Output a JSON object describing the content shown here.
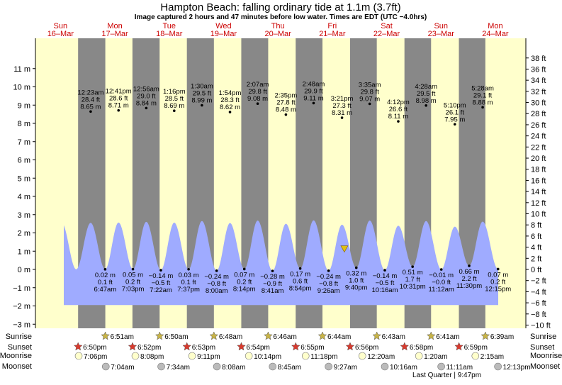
{
  "chart_data": {
    "type": "area",
    "title": "Hampton Beach: falling  ordinary tide at 1.1m (3.7ft)",
    "subtitle": "Image captured 2 hours and 47 minutes before low water. Times are EDT (UTC −4.0hrs)",
    "current_level_m": 1.1,
    "y_left": {
      "unit": "m",
      "ticks": [
        -3,
        -2,
        -1,
        0,
        1,
        2,
        3,
        4,
        5,
        6,
        7,
        8,
        9,
        10,
        11
      ],
      "labels": [
        "−3 m",
        "−2 m",
        "−1 m",
        "0 m",
        "1 m",
        "2 m",
        "3 m",
        "4 m",
        "5 m",
        "6 m",
        "7 m",
        "8 m",
        "9 m",
        "10 m",
        "11 m"
      ]
    },
    "y_right": {
      "unit": "ft",
      "ticks": [
        -10,
        -8,
        -6,
        -4,
        -2,
        0,
        2,
        4,
        6,
        8,
        10,
        12,
        14,
        16,
        18,
        20,
        22,
        24,
        26,
        28,
        30,
        32,
        34,
        36,
        38
      ],
      "labels": [
        "−10 ft",
        "−8 ft",
        "−6 ft",
        "−4 ft",
        "−2 ft",
        "0 ft",
        "2 ft",
        "4 ft",
        "6 ft",
        "8 ft",
        "10 ft",
        "12 ft",
        "14 ft",
        "16 ft",
        "18 ft",
        "20 ft",
        "22 ft",
        "24 ft",
        "26 ft",
        "28 ft",
        "30 ft",
        "32 ft",
        "34 ft",
        "36 ft",
        "38 ft"
      ]
    },
    "ylim_m": [
      -3,
      11.8
    ],
    "days": [
      {
        "dow": "Sun",
        "date": "16–Mar"
      },
      {
        "dow": "Mon",
        "date": "17–Mar"
      },
      {
        "dow": "Tue",
        "date": "18–Mar"
      },
      {
        "dow": "Wed",
        "date": "19–Mar"
      },
      {
        "dow": "Thu",
        "date": "20–Mar"
      },
      {
        "dow": "Fri",
        "date": "21–Mar"
      },
      {
        "dow": "Sat",
        "date": "22–Mar"
      },
      {
        "dow": "Sun",
        "date": "23–Mar"
      },
      {
        "dow": "Mon",
        "date": "24–Mar"
      }
    ],
    "high_tides": [
      {
        "day": 1,
        "hour": 0.383,
        "time": "12:23 am",
        "ft": "28.4 ft",
        "m": 8.65
      },
      {
        "day": 1,
        "hour": 12.683,
        "time": "12:41 pm",
        "ft": "28.6 ft",
        "m": 8.71
      },
      {
        "day": 2,
        "hour": 0.933,
        "time": "12:56 am",
        "ft": "29.0 ft",
        "m": 8.84
      },
      {
        "day": 2,
        "hour": 13.267,
        "time": "1:16 pm",
        "ft": "28.5 ft",
        "m": 8.69
      },
      {
        "day": 3,
        "hour": 1.5,
        "time": "1:30 am",
        "ft": "29.5 ft",
        "m": 8.99
      },
      {
        "day": 3,
        "hour": 13.9,
        "time": "1:54 pm",
        "ft": "28.3 ft",
        "m": 8.62
      },
      {
        "day": 4,
        "hour": 2.117,
        "time": "2:07 am",
        "ft": "29.8 ft",
        "m": 9.08
      },
      {
        "day": 4,
        "hour": 14.583,
        "time": "2:35 pm",
        "ft": "27.8 ft",
        "m": 8.48
      },
      {
        "day": 5,
        "hour": 2.8,
        "time": "2:48 am",
        "ft": "29.9 ft",
        "m": 9.11
      },
      {
        "day": 5,
        "hour": 15.35,
        "time": "3:21 pm",
        "ft": "27.3 ft",
        "m": 8.31
      },
      {
        "day": 6,
        "hour": 3.583,
        "time": "3:35 am",
        "ft": "29.8 ft",
        "m": 9.07
      },
      {
        "day": 6,
        "hour": 16.2,
        "time": "4:12 pm",
        "ft": "26.6 ft",
        "m": 8.11
      },
      {
        "day": 7,
        "hour": 4.467,
        "time": "4:28 am",
        "ft": "29.5 ft",
        "m": 8.98
      },
      {
        "day": 7,
        "hour": 17.167,
        "time": "5:10 pm",
        "ft": "26.1 ft",
        "m": 7.95
      },
      {
        "day": 8,
        "hour": 5.467,
        "time": "5:28 am",
        "ft": "29.1 ft",
        "m": 8.88
      }
    ],
    "low_tides": [
      {
        "day": 1,
        "hour": 6.783,
        "time": "6:47 am",
        "ft": "0.1 ft",
        "m": "0.02 m",
        "v": 0.02
      },
      {
        "day": 1,
        "hour": 19.05,
        "time": "7:03 pm",
        "ft": "0.2 ft",
        "m": "0.05 m",
        "v": 0.05
      },
      {
        "day": 2,
        "hour": 7.367,
        "time": "7:22 am",
        "ft": "−0.5 ft",
        "m": "−0.14 m",
        "v": -0.14
      },
      {
        "day": 2,
        "hour": 19.617,
        "time": "7:37 pm",
        "ft": "0.1 ft",
        "m": "0.03 m",
        "v": 0.03
      },
      {
        "day": 3,
        "hour": 8.0,
        "time": "8:00 am",
        "ft": "−0.8 ft",
        "m": "−0.24 m",
        "v": -0.24
      },
      {
        "day": 3,
        "hour": 20.233,
        "time": "8:14 pm",
        "ft": "0.2 ft",
        "m": "0.07 m",
        "v": 0.07
      },
      {
        "day": 4,
        "hour": 8.683,
        "time": "8:41 am",
        "ft": "−0.9 ft",
        "m": "−0.28 m",
        "v": -0.28
      },
      {
        "day": 4,
        "hour": 20.9,
        "time": "8:54 pm",
        "ft": "0.6 ft",
        "m": "0.17 m",
        "v": 0.17
      },
      {
        "day": 5,
        "hour": 9.433,
        "time": "9:26 am",
        "ft": "−0.8 ft",
        "m": "−0.24 m",
        "v": -0.24
      },
      {
        "day": 5,
        "hour": 21.667,
        "time": "9:40 pm",
        "ft": "1.0 ft",
        "m": "0.32 m",
        "v": 0.32
      },
      {
        "day": 6,
        "hour": 10.267,
        "time": "10:16 am",
        "ft": "−0.5 ft",
        "m": "−0.14 m",
        "v": -0.14
      },
      {
        "day": 6,
        "hour": 22.517,
        "time": "10:31 pm",
        "ft": "1.7 ft",
        "m": "0.51 m",
        "v": 0.51
      },
      {
        "day": 7,
        "hour": 11.2,
        "time": "11:12 am",
        "ft": "−0.0 ft",
        "m": "−0.01 m",
        "v": -0.01
      },
      {
        "day": 7,
        "hour": 23.5,
        "time": "11:30 pm",
        "ft": "2.2 ft",
        "m": "0.66 m",
        "v": 0.66
      },
      {
        "day": 8,
        "hour": 12.25,
        "time": "12:15 pm",
        "ft": "0.2 ft",
        "m": "0.07 m",
        "v": 0.07
      }
    ],
    "night_shading": [
      {
        "from_day": 0,
        "from_hour": 18.833,
        "to_day": 1,
        "to_hour": 6.85
      },
      {
        "from_day": 1,
        "from_hour": 18.833,
        "to_day": 2,
        "to_hour": 6.833
      },
      {
        "from_day": 2,
        "from_hour": 18.867,
        "to_day": 3,
        "to_hour": 6.8
      },
      {
        "from_day": 3,
        "from_hour": 18.883,
        "to_day": 4,
        "to_hour": 6.767
      },
      {
        "from_day": 4,
        "from_hour": 18.9,
        "to_day": 5,
        "to_hour": 6.733
      },
      {
        "from_day": 5,
        "from_hour": 18.917,
        "to_day": 6,
        "to_hour": 6.717
      },
      {
        "from_day": 6,
        "from_hour": 18.933,
        "to_day": 7,
        "to_hour": 6.683
      },
      {
        "from_day": 7,
        "from_hour": 18.967,
        "to_day": 8,
        "to_hour": 6.65
      }
    ],
    "current_marker": {
      "day": 5,
      "hour": 18.9
    },
    "colors": {
      "day": "#ffffcc",
      "night": "#888888",
      "water": "#9fabff",
      "sunrise_star": "#c8b447",
      "sunset_star": "#d83a2e",
      "moonrise_disc": "#ffffcc",
      "moonset_disc": "#bbbbbb",
      "marker": "#e0c010"
    },
    "row_labels": {
      "sunrise": "Sunrise",
      "sunset": "Sunset",
      "moonrise": "Moonrise",
      "moonset": "Moonset"
    },
    "sunrise": [
      {
        "day": 1,
        "hour": 6.85,
        "label": "6:51am"
      },
      {
        "day": 2,
        "hour": 6.833,
        "label": "6:50am"
      },
      {
        "day": 3,
        "hour": 6.8,
        "label": "6:48am"
      },
      {
        "day": 4,
        "hour": 6.767,
        "label": "6:46am"
      },
      {
        "day": 5,
        "hour": 6.733,
        "label": "6:44am"
      },
      {
        "day": 6,
        "hour": 6.717,
        "label": "6:43am"
      },
      {
        "day": 7,
        "hour": 6.683,
        "label": "6:41am"
      },
      {
        "day": 8,
        "hour": 6.65,
        "label": "6:39am"
      }
    ],
    "sunset": [
      {
        "day": 0,
        "hour": 18.833,
        "label": "6:50pm"
      },
      {
        "day": 1,
        "hour": 18.867,
        "label": "6:52pm"
      },
      {
        "day": 2,
        "hour": 18.883,
        "label": "6:53pm"
      },
      {
        "day": 3,
        "hour": 18.9,
        "label": "6:54pm"
      },
      {
        "day": 4,
        "hour": 18.917,
        "label": "6:55pm"
      },
      {
        "day": 5,
        "hour": 18.933,
        "label": "6:56pm"
      },
      {
        "day": 6,
        "hour": 18.967,
        "label": "6:58pm"
      },
      {
        "day": 7,
        "hour": 18.983,
        "label": "6:59pm"
      }
    ],
    "moonrise": [
      {
        "day": 0,
        "hour": 19.1,
        "label": "7:06pm"
      },
      {
        "day": 1,
        "hour": 20.133,
        "label": "8:08pm"
      },
      {
        "day": 2,
        "hour": 21.183,
        "label": "9:11pm"
      },
      {
        "day": 3,
        "hour": 22.233,
        "label": "10:14pm"
      },
      {
        "day": 4,
        "hour": 23.3,
        "label": "11:18pm"
      },
      {
        "day": 6,
        "hour": 0.333,
        "label": "12:20am"
      },
      {
        "day": 7,
        "hour": 1.333,
        "label": "1:20am"
      },
      {
        "day": 8,
        "hour": 2.25,
        "label": "2:15am"
      }
    ],
    "moonset": [
      {
        "day": 1,
        "hour": 7.067,
        "label": "7:04am"
      },
      {
        "day": 2,
        "hour": 7.567,
        "label": "7:34am"
      },
      {
        "day": 3,
        "hour": 8.133,
        "label": "8:08am"
      },
      {
        "day": 4,
        "hour": 8.75,
        "label": "8:45am"
      },
      {
        "day": 5,
        "hour": 9.45,
        "label": "9:27am"
      },
      {
        "day": 6,
        "hour": 10.267,
        "label": "10:16am"
      },
      {
        "day": 7,
        "hour": 11.183,
        "label": "11:11am"
      },
      {
        "day": 8,
        "hour": 12.217,
        "label": "12:13pm"
      }
    ],
    "moon_phase": {
      "label": "Last Quarter | 9:47pm",
      "day": 7,
      "hour": 21.783
    }
  }
}
